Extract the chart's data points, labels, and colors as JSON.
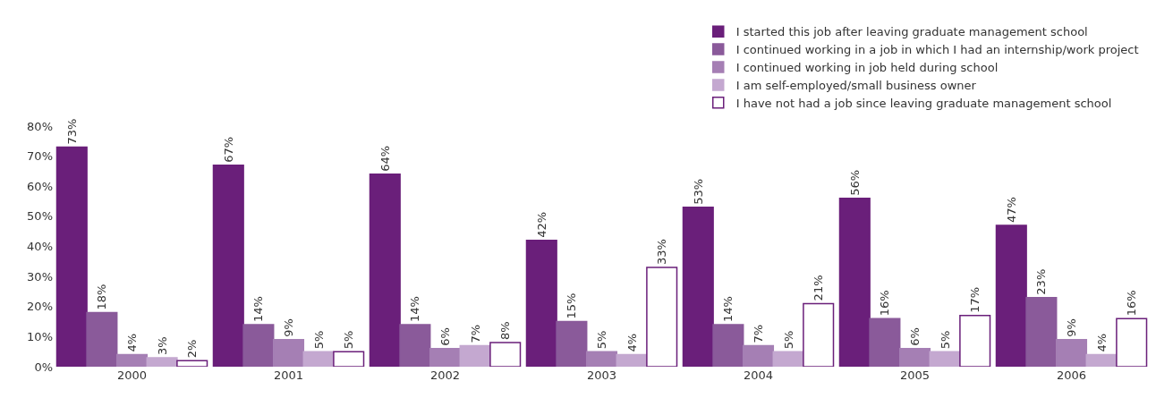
{
  "chart_data": {
    "type": "bar",
    "categories": [
      "2000",
      "2001",
      "2002",
      "2003",
      "2004",
      "2005",
      "2006"
    ],
    "series": [
      {
        "name": "I started this job after leaving graduate management school",
        "color": "#6a1f7a",
        "values": [
          73,
          67,
          64,
          42,
          53,
          56,
          47
        ],
        "value_labels": [
          "73%",
          "67%",
          "64%",
          "42%",
          "53%",
          "56%",
          "47%"
        ]
      },
      {
        "name": "I continued working in a job in which I had an internship/work project",
        "color": "#8a5a9a",
        "values": [
          18,
          14,
          14,
          15,
          14,
          16,
          23
        ],
        "value_labels": [
          "18%",
          "14%",
          "14%",
          "15%",
          "14%",
          "16%",
          "23%"
        ]
      },
      {
        "name": "I continued working in job held during school",
        "color": "#a57fb4",
        "values": [
          4,
          9,
          6,
          5,
          7,
          6,
          9
        ],
        "value_labels": [
          "4%",
          "9%",
          "6%",
          "5%",
          "7%",
          "6%",
          "9%"
        ]
      },
      {
        "name": "I am self-employed/small business owner",
        "color": "#c4a8d0",
        "values": [
          3,
          5,
          7,
          4,
          5,
          5,
          4
        ],
        "value_labels": [
          "3%",
          "5%",
          "7%",
          "4%",
          "5%",
          "5%",
          "4%"
        ]
      },
      {
        "name": "I have not had a job since leaving graduate management school",
        "color": "#ffffff",
        "values": [
          2,
          5,
          8,
          33,
          21,
          17,
          16
        ],
        "value_labels": [
          "2%",
          "5%",
          "8%",
          "33%",
          "21%",
          "17%",
          "16%"
        ]
      }
    ],
    "ylim": [
      0,
      80
    ],
    "yticks": [
      {
        "value": 0,
        "label": "0%"
      },
      {
        "value": 10,
        "label": "10%"
      },
      {
        "value": 20,
        "label": "20%"
      },
      {
        "value": 30,
        "label": "30%"
      },
      {
        "value": 40,
        "label": "40%"
      },
      {
        "value": 50,
        "label": "50%"
      },
      {
        "value": 60,
        "label": "60%"
      },
      {
        "value": 70,
        "label": "70%"
      },
      {
        "value": 80,
        "label": "80%"
      }
    ],
    "grid": false,
    "legend": "top right"
  }
}
